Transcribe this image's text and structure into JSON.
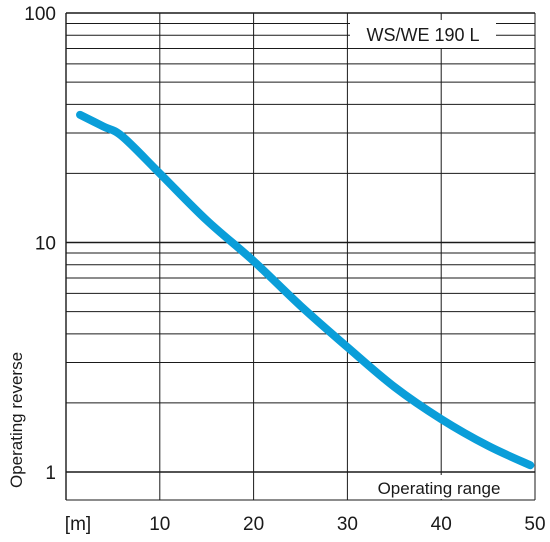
{
  "chart_data": {
    "type": "line",
    "title": "",
    "xlabel": "Operating range",
    "ylabel": "Operating reverse",
    "x_unit_label": "[m]",
    "xlim": [
      0,
      50
    ],
    "ylim": [
      1,
      100
    ],
    "y_scale": "log",
    "grid": true,
    "x_ticks": [
      10,
      20,
      30,
      40,
      50
    ],
    "x_tick_labels": [
      "10",
      "20",
      "30",
      "40",
      "50"
    ],
    "y_ticks": [
      1,
      10,
      100
    ],
    "y_tick_labels": [
      "1",
      "10",
      "100"
    ],
    "legend_position": "top-right",
    "series": [
      {
        "name": "WS/WE 190 L",
        "color": "#0a9ed9",
        "x": [
          1.5,
          4,
          6,
          10,
          15,
          20,
          25,
          30,
          35,
          40,
          45,
          49.5
        ],
        "y": [
          36,
          32,
          29,
          20,
          12.5,
          8.3,
          5.3,
          3.5,
          2.35,
          1.7,
          1.3,
          1.07
        ]
      }
    ]
  }
}
